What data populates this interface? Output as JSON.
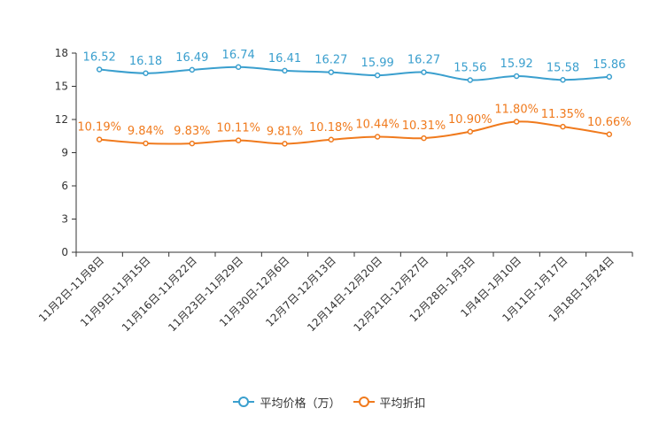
{
  "chart_data": {
    "type": "line",
    "title": "",
    "xlabel": "",
    "ylabel": "",
    "ylim": [
      0,
      18
    ],
    "yticks": [
      0,
      3,
      6,
      9,
      12,
      15,
      18
    ],
    "grid": false,
    "legend_position": "bottom",
    "categories": [
      "11月2日-11月8日",
      "11月9日-11月15日",
      "11月16日-11月22日",
      "11月23日-11月29日",
      "11月30日-12月6日",
      "12月7日-12月13日",
      "12月14日-12月20日",
      "12月21日-12月27日",
      "12月28日-1月3日",
      "1月4日-1月10日",
      "1月11日-1月17日",
      "1月18日-1月24日"
    ],
    "series": [
      {
        "name": "平均价格（万）",
        "color": "#3a9fce",
        "values": [
          16.52,
          16.18,
          16.49,
          16.74,
          16.41,
          16.27,
          15.99,
          16.27,
          15.56,
          15.92,
          15.58,
          15.86
        ],
        "labels": [
          "16.52",
          "16.18",
          "16.49",
          "16.74",
          "16.41",
          "16.27",
          "15.99",
          "16.27",
          "15.56",
          "15.92",
          "15.58",
          "15.86"
        ]
      },
      {
        "name": "平均折扣",
        "color": "#f07a1d",
        "values": [
          10.19,
          9.84,
          9.83,
          10.11,
          9.81,
          10.18,
          10.44,
          10.31,
          10.9,
          11.8,
          11.35,
          10.66
        ],
        "labels": [
          "10.19%",
          "9.84%",
          "9.83%",
          "10.11%",
          "9.81%",
          "10.18%",
          "10.44%",
          "10.31%",
          "10.90%",
          "11.80%",
          "11.35%",
          "10.66%"
        ]
      }
    ]
  }
}
